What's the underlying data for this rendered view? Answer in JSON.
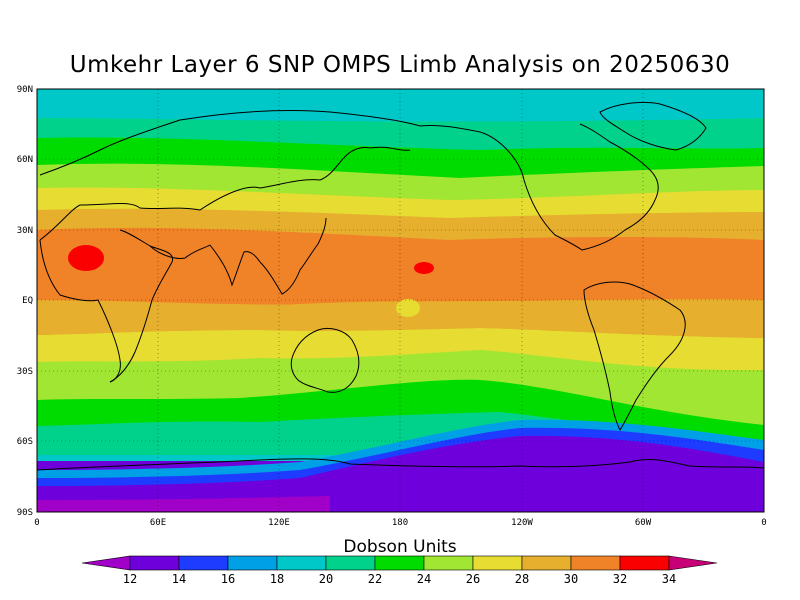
{
  "title": "Umkehr Layer 6 SNP OMPS Limb Analysis on 20250630",
  "units_label": "Dobson Units",
  "lat_labels": [
    "90N",
    "60N",
    "30N",
    "EQ",
    "30S",
    "60S",
    "90S"
  ],
  "lon_labels": [
    "0",
    "60E",
    "120E",
    "180",
    "120W",
    "60W",
    "0"
  ],
  "colorbar": {
    "levels": [
      "12",
      "14",
      "16",
      "18",
      "20",
      "22",
      "24",
      "26",
      "28",
      "30",
      "32",
      "34"
    ],
    "colors": [
      "#a000c8",
      "#6e00dc",
      "#1e3cff",
      "#00a0e6",
      "#00c8c8",
      "#00d28c",
      "#00dc00",
      "#a0e632",
      "#e6dc32",
      "#e6af2d",
      "#f08228",
      "#fa0000",
      "#c80078"
    ]
  },
  "chart_data": {
    "type": "heatmap",
    "title": "Umkehr Layer 6 SNP OMPS Limb Analysis on 20250630",
    "units": "Dobson Units",
    "x": {
      "range": [
        0,
        360
      ],
      "ticks": [
        "0",
        "60E",
        "120E",
        "180",
        "120W",
        "60W",
        "0"
      ]
    },
    "y": {
      "range": [
        -90,
        90
      ],
      "ticks": [
        "90N",
        "60N",
        "30N",
        "EQ",
        "30S",
        "60S",
        "90S"
      ]
    },
    "grid": true,
    "zonal_bands": [
      {
        "lat": [
          78,
          90
        ],
        "value_dobson": 20
      },
      {
        "lat": [
          70,
          78
        ],
        "value_dobson": 21
      },
      {
        "lat": [
          58,
          70
        ],
        "value_dobson": 23
      },
      {
        "lat": [
          50,
          58
        ],
        "value_dobson": 25
      },
      {
        "lat": [
          40,
          50
        ],
        "value_dobson": 27
      },
      {
        "lat": [
          30,
          40
        ],
        "value_dobson": 29
      },
      {
        "lat": [
          5,
          30
        ],
        "value_dobson": 31
      },
      {
        "lat": [
          -10,
          5
        ],
        "value_dobson": 29
      },
      {
        "lat": [
          -25,
          -10
        ],
        "value_dobson": 27
      },
      {
        "lat": [
          -38,
          -25
        ],
        "value_dobson": 25
      },
      {
        "lat": [
          -45,
          -38
        ],
        "value_dobson": 23
      },
      {
        "lat": [
          -50,
          -45
        ],
        "value_dobson": 21
      },
      {
        "lat": [
          -55,
          -50
        ],
        "value_dobson": 19
      },
      {
        "lat": [
          -62,
          -55
        ],
        "value_dobson": 17
      },
      {
        "lat": [
          -70,
          -62
        ],
        "value_dobson": 15
      },
      {
        "lat": [
          -90,
          -70
        ],
        "value_dobson": 13
      }
    ],
    "maxima": [
      {
        "lon": 25,
        "lat": 20,
        "value_dobson": 33
      },
      {
        "lon": 190,
        "lat": 15,
        "value_dobson": 33
      }
    ]
  }
}
